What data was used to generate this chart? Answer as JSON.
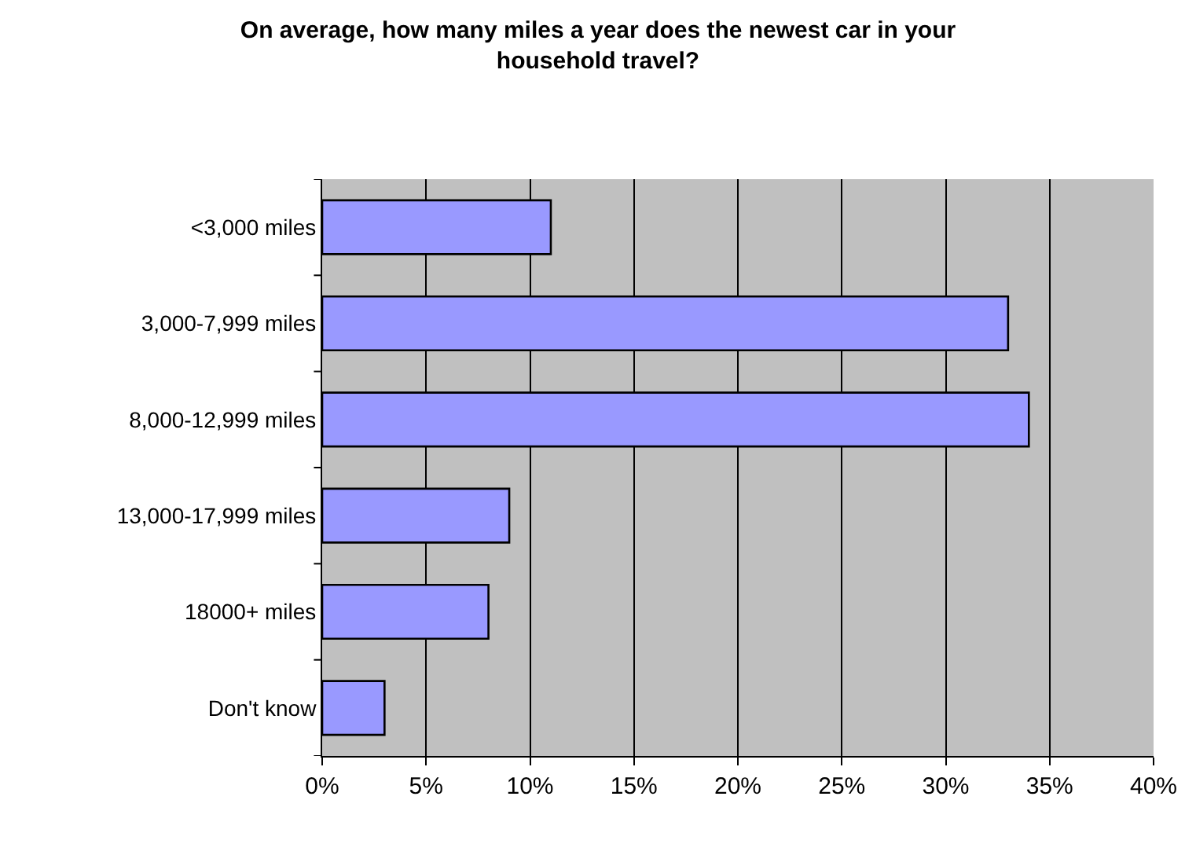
{
  "chart_data": {
    "type": "bar",
    "orientation": "horizontal",
    "title": "On average, how many miles a year does the newest car in your household travel?",
    "categories": [
      "<3,000 miles",
      "3,000-7,999 miles",
      "8,000-12,999 miles",
      "13,000-17,999 miles",
      "18000+ miles",
      "Don't know"
    ],
    "values": [
      11,
      33,
      34,
      9,
      8,
      3
    ],
    "color": "#9999ff",
    "xlim": [
      0,
      40
    ],
    "xticks": [
      {
        "value": 0,
        "label": "0%"
      },
      {
        "value": 5,
        "label": "5%"
      },
      {
        "value": 10,
        "label": "10%"
      },
      {
        "value": 15,
        "label": "15%"
      },
      {
        "value": 20,
        "label": "20%"
      },
      {
        "value": 25,
        "label": "25%"
      },
      {
        "value": 30,
        "label": "30%"
      },
      {
        "value": 35,
        "label": "35%"
      },
      {
        "value": 40,
        "label": "40%"
      }
    ],
    "grid": "x",
    "legend": false
  }
}
